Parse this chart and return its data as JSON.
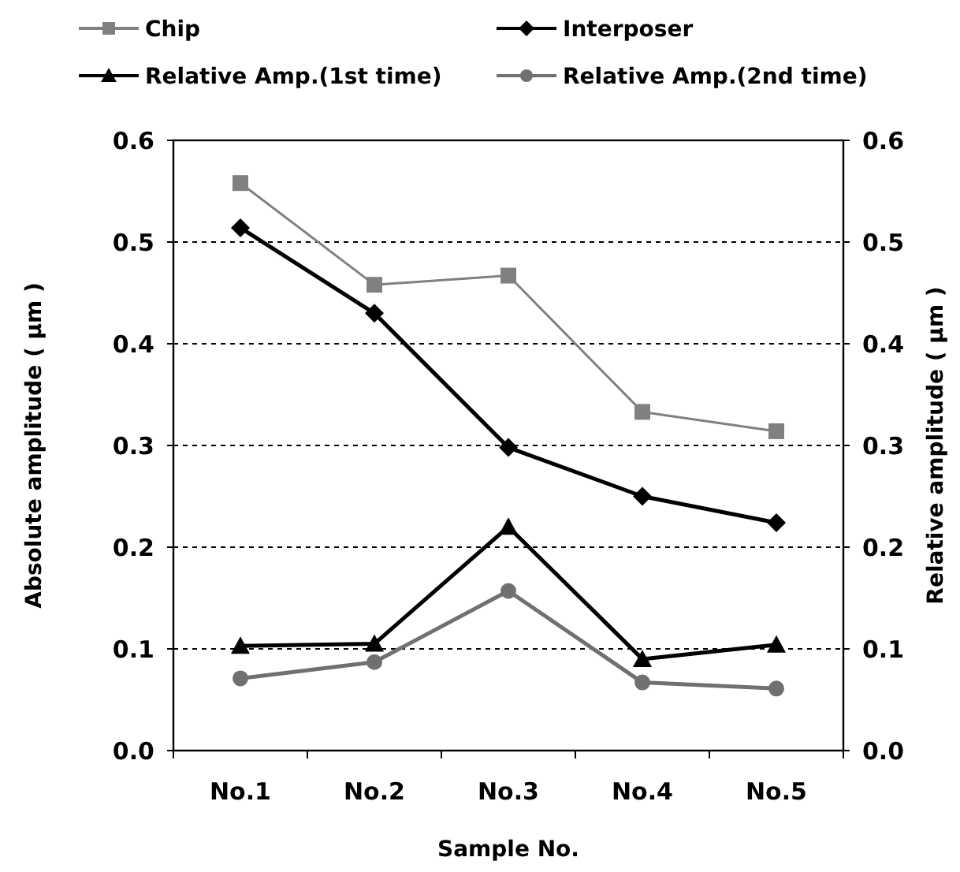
{
  "chart_data": {
    "type": "line",
    "xlabel": "Sample No.",
    "ylabel": "Absolute amplitude ( μm )",
    "y2label": "Relative amplitude ( μm )",
    "categories": [
      "No.1",
      "No.2",
      "No.3",
      "No.4",
      "No.5"
    ],
    "series": [
      {
        "name": "Chip",
        "color": "#808080",
        "marker": "square",
        "values": [
          0.558,
          0.458,
          0.467,
          0.333,
          0.314
        ]
      },
      {
        "name": "Interposer",
        "color": "#000000",
        "marker": "diamond",
        "values": [
          0.514,
          0.43,
          0.298,
          0.25,
          0.224
        ]
      },
      {
        "name": "Relative Amp.(1st time)",
        "color": "#000000",
        "marker": "triangle",
        "values": [
          0.103,
          0.105,
          0.22,
          0.09,
          0.104
        ]
      },
      {
        "name": "Relative Amp.(2nd time)",
        "color": "#707070",
        "marker": "circle",
        "values": [
          0.071,
          0.087,
          0.157,
          0.067,
          0.061
        ]
      }
    ],
    "ylim": [
      0,
      0.6
    ],
    "yticks": [
      {
        "value": 0,
        "label": "0.0"
      },
      0.1,
      0.2,
      0.3,
      0.4,
      0.5,
      0.6
    ],
    "y2lim": [
      0,
      0.6
    ],
    "y2ticks": [
      {
        "value": 0,
        "label": "0.0"
      },
      0.1,
      0.2,
      0.3,
      0.4,
      0.5,
      0.6
    ],
    "grid": "y",
    "legend": "top",
    "line_style": "solid"
  }
}
